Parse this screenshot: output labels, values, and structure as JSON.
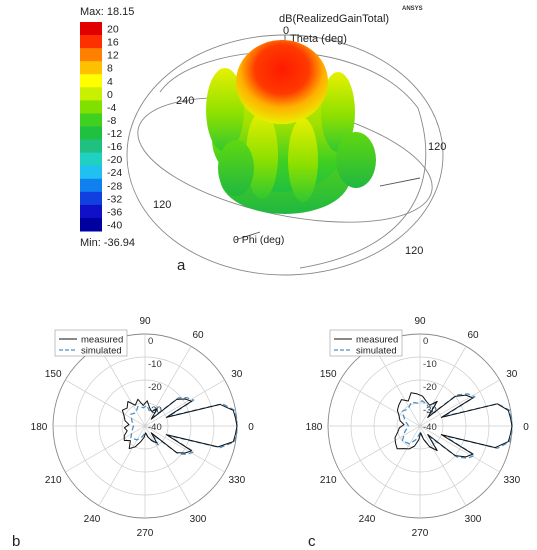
{
  "chart_data": [
    {
      "type": "heatmap",
      "panel_label": "a",
      "title": "dB(RealizedGainTotal)",
      "max_label": "Max: 18.15",
      "min_label": "Min: -36.94",
      "brand": "ANSYS",
      "colorbar": {
        "ticks": [
          "20",
          "16",
          "12",
          "8",
          "4",
          "0",
          "-4",
          "-8",
          "-12",
          "-16",
          "-20",
          "-24",
          "-28",
          "-32",
          "-36",
          "-40"
        ],
        "colors": [
          "#e00000",
          "#ff3000",
          "#ff8000",
          "#ffc000",
          "#ffff00",
          "#c8f000",
          "#80e000",
          "#40d020",
          "#20c040",
          "#20c080",
          "#20d0c0",
          "#20c0f0",
          "#1080f0",
          "#1040e0",
          "#1010c8",
          "#0000a0"
        ]
      },
      "axis_labels": {
        "theta_axis": "Theta (deg)",
        "phi_axis": "0 Phi (deg)",
        "theta_zero": "0",
        "ring_labels": [
          "240",
          "120",
          "120",
          "120"
        ]
      }
    },
    {
      "type": "line",
      "panel_label": "b",
      "polar": true,
      "angle_ticks": [
        "0",
        "30",
        "60",
        "90",
        "120",
        "150",
        "180",
        "210",
        "240",
        "270",
        "300",
        "330"
      ],
      "radial_ticks": [
        "0",
        "-10",
        "-20",
        "-30",
        "-40"
      ],
      "rlim": [
        -40,
        0
      ],
      "series": [
        {
          "name": "measured",
          "style": "solid",
          "color": "#111111",
          "angles": [
            -85,
            -75,
            -65,
            -55,
            -48,
            -40,
            -34,
            -28,
            -22,
            -16,
            -10,
            -5,
            0,
            5,
            10,
            16,
            22,
            28,
            34,
            40,
            48,
            55,
            65,
            75,
            85,
            95,
            105,
            115,
            125,
            135,
            145,
            155,
            165,
            175,
            185,
            195,
            205,
            215,
            225,
            235,
            245,
            255,
            265,
            275
          ],
          "values": [
            -37,
            -35,
            -33,
            -31,
            -36,
            -22,
            -19,
            -17,
            -30,
            -7,
            -1,
            -0.5,
            0,
            -0.5,
            -1,
            -6,
            -30,
            -17,
            -19,
            -22,
            -36,
            -31,
            -33,
            -32,
            -29,
            -31,
            -28,
            -30,
            -27,
            -29,
            -28,
            -30,
            -31,
            -33,
            -31,
            -32,
            -30,
            -29,
            -31,
            -28,
            -30,
            -33,
            -35,
            -37
          ]
        },
        {
          "name": "simulated",
          "style": "dashed",
          "color": "#4a90c8",
          "angles": [
            -85,
            -75,
            -65,
            -55,
            -48,
            -40,
            -34,
            -28,
            -22,
            -16,
            -10,
            -5,
            0,
            5,
            10,
            16,
            22,
            28,
            34,
            40,
            48,
            55,
            65,
            75,
            85,
            95,
            110,
            125,
            140,
            160,
            180,
            200,
            220,
            240,
            255,
            270
          ],
          "values": [
            -37,
            -35,
            -33,
            -30,
            -35,
            -21,
            -18,
            -16,
            -29,
            -6,
            -0.5,
            0,
            0,
            0,
            -0.5,
            -5,
            -29,
            -16,
            -18,
            -21,
            -35,
            -30,
            -33,
            -33,
            -31,
            -32,
            -31,
            -33,
            -32,
            -34,
            -35,
            -34,
            -32,
            -33,
            -35,
            -37
          ]
        }
      ]
    },
    {
      "type": "line",
      "panel_label": "c",
      "polar": true,
      "angle_ticks": [
        "0",
        "30",
        "60",
        "90",
        "120",
        "150",
        "180",
        "210",
        "240",
        "270",
        "300",
        "330"
      ],
      "radial_ticks": [
        "0",
        "-10",
        "-20",
        "-30",
        "-40"
      ],
      "rlim": [
        -40,
        0
      ],
      "series": [
        {
          "name": "measured",
          "style": "solid",
          "color": "#111111",
          "angles": [
            -85,
            -75,
            -65,
            -55,
            -48,
            -40,
            -34,
            -28,
            -22,
            -16,
            -10,
            -5,
            0,
            5,
            10,
            16,
            22,
            28,
            34,
            40,
            48,
            55,
            65,
            75,
            85,
            95,
            105,
            115,
            125,
            135,
            145,
            155,
            165,
            175,
            185,
            195,
            205,
            215,
            225,
            235,
            245,
            255,
            265,
            275
          ],
          "values": [
            -37,
            -34,
            -30,
            -27,
            -35,
            -20,
            -16,
            -14,
            -30,
            -6,
            -1,
            -0.5,
            0,
            -0.5,
            -1,
            -5,
            -30,
            -14,
            -16,
            -20,
            -35,
            -27,
            -30,
            -29,
            -27,
            -26,
            -25,
            -28,
            -26,
            -27,
            -28,
            -30,
            -31,
            -33,
            -31,
            -30,
            -28,
            -27,
            -26,
            -28,
            -29,
            -31,
            -34,
            -37
          ]
        },
        {
          "name": "simulated",
          "style": "dashed",
          "color": "#4a90c8",
          "angles": [
            -85,
            -75,
            -65,
            -55,
            -48,
            -40,
            -34,
            -28,
            -22,
            -16,
            -10,
            -5,
            0,
            5,
            10,
            16,
            22,
            28,
            34,
            40,
            48,
            55,
            65,
            75,
            85,
            95,
            110,
            125,
            140,
            160,
            180,
            200,
            220,
            240,
            255,
            270
          ],
          "values": [
            -37,
            -34,
            -30,
            -27,
            -34,
            -19,
            -15,
            -13,
            -29,
            -5,
            -0.5,
            0,
            0,
            0,
            -0.5,
            -5,
            -29,
            -13,
            -15,
            -19,
            -34,
            -27,
            -31,
            -30,
            -29,
            -30,
            -29,
            -31,
            -30,
            -33,
            -35,
            -33,
            -30,
            -31,
            -34,
            -37
          ]
        }
      ]
    }
  ]
}
